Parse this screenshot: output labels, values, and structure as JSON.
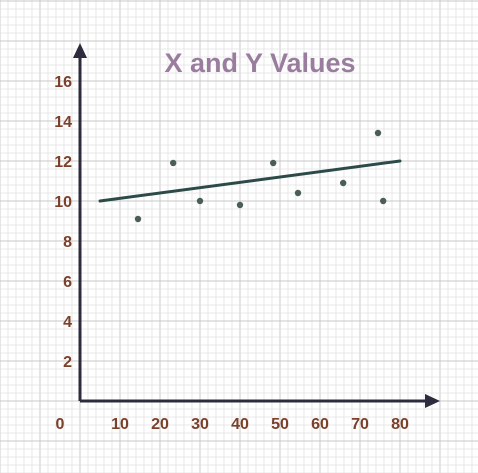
{
  "chart_data": {
    "type": "scatter",
    "title": "X and Y Values",
    "xlabel": "",
    "ylabel": "",
    "xlim": [
      0,
      80
    ],
    "ylim": [
      0,
      16
    ],
    "x_ticks": [
      10,
      20,
      30,
      40,
      50,
      60,
      70,
      80
    ],
    "y_ticks": [
      2,
      4,
      6,
      8,
      10,
      12,
      14,
      16
    ],
    "origin_label": "0",
    "grid": true,
    "points": [
      {
        "x": 14.5,
        "y": 9.1
      },
      {
        "x": 23.3,
        "y": 11.9
      },
      {
        "x": 30.0,
        "y": 10.0
      },
      {
        "x": 40.0,
        "y": 9.8
      },
      {
        "x": 48.3,
        "y": 11.9
      },
      {
        "x": 54.5,
        "y": 10.4
      },
      {
        "x": 65.8,
        "y": 10.9
      },
      {
        "x": 74.5,
        "y": 13.4
      },
      {
        "x": 75.8,
        "y": 10.0
      }
    ],
    "trendline": {
      "x": [
        5,
        80
      ],
      "y": [
        10.0,
        12.0
      ]
    }
  },
  "colors": {
    "title": "#9a7c9e",
    "tick_labels": "#7b3f2a",
    "axis": "#2c2c3e",
    "points": "#4a5e56",
    "trendline": "#2c4a48",
    "grid_minor": "#e2e2e2",
    "grid_major": "#c8c8c8"
  }
}
